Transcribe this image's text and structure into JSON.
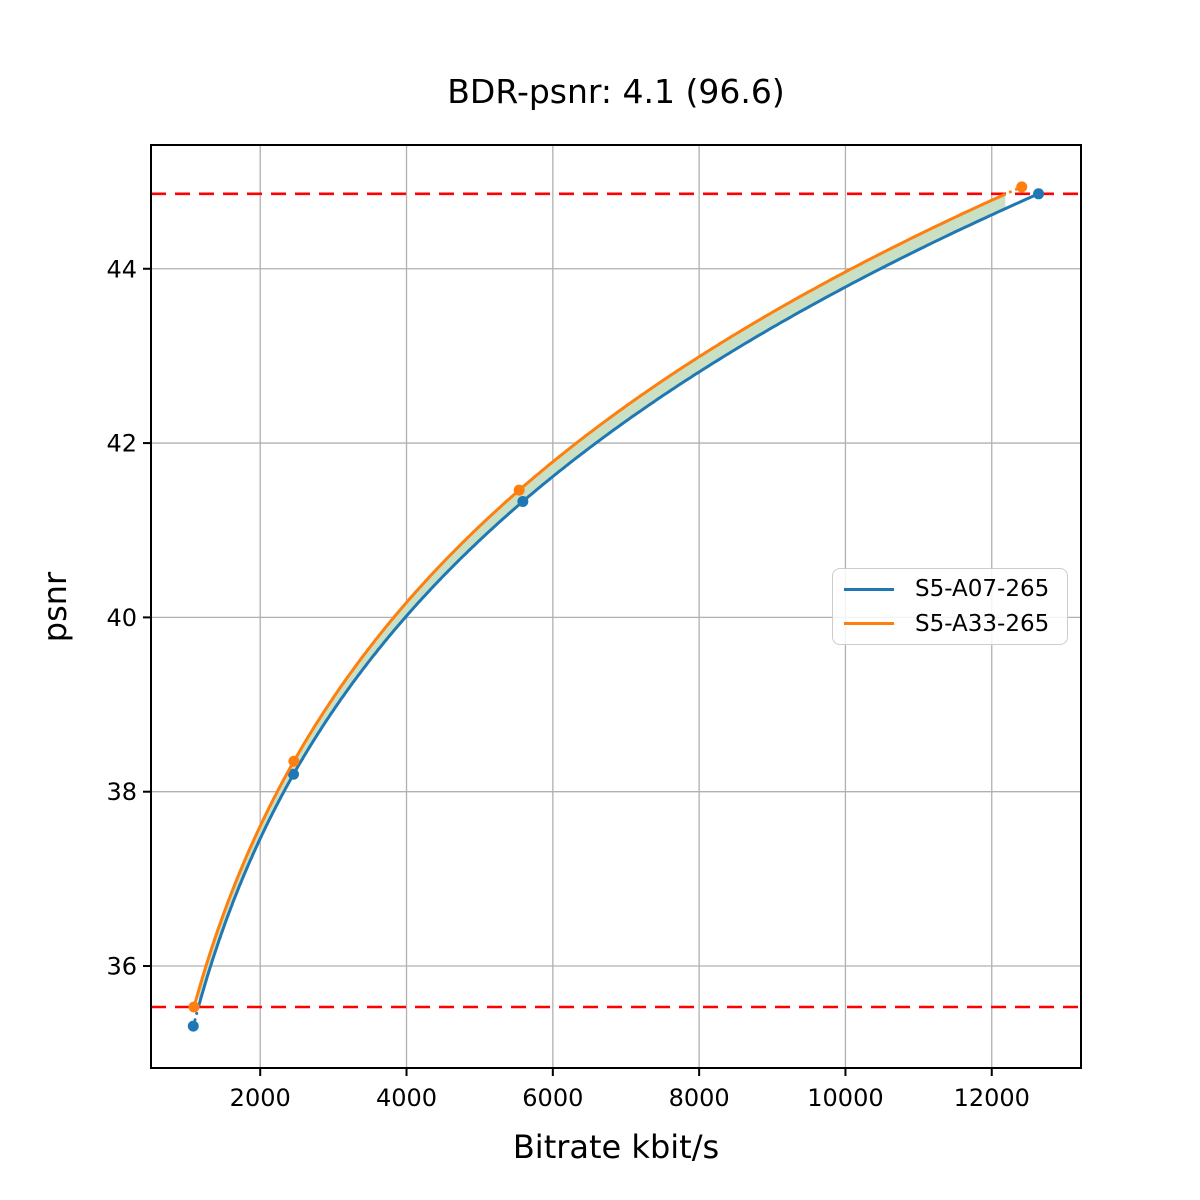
{
  "chart_data": {
    "type": "line",
    "title": "BDR-psnr: 4.1 (96.6)",
    "xlabel": "Bitrate kbit/s",
    "ylabel": "psnr",
    "xlim": [
      507,
      13220
    ],
    "ylim": [
      34.83,
      45.42
    ],
    "xticks": [
      2000,
      4000,
      6000,
      8000,
      10000,
      12000
    ],
    "yticks": [
      36,
      38,
      40,
      42,
      44
    ],
    "grid": true,
    "grid_color": "#b0b0b0",
    "legend_position": "center right",
    "series": [
      {
        "name": "S5-A07-265",
        "color": "#1f77b4",
        "x": [
          1085,
          2455,
          5590,
          12640
        ],
        "y": [
          35.31,
          38.2,
          41.33,
          44.86
        ]
      },
      {
        "name": "S5-A33-265",
        "color": "#ff7f0e",
        "x": [
          1095,
          2460,
          5540,
          12410
        ],
        "y": [
          35.53,
          38.35,
          41.46,
          44.94
        ]
      }
    ],
    "bd_bounds": {
      "lower_psnr": 35.53,
      "upper_psnr": 44.86,
      "color": "#ff0000",
      "style": "dashed"
    },
    "fill_between_color": "#c9e0c4"
  }
}
